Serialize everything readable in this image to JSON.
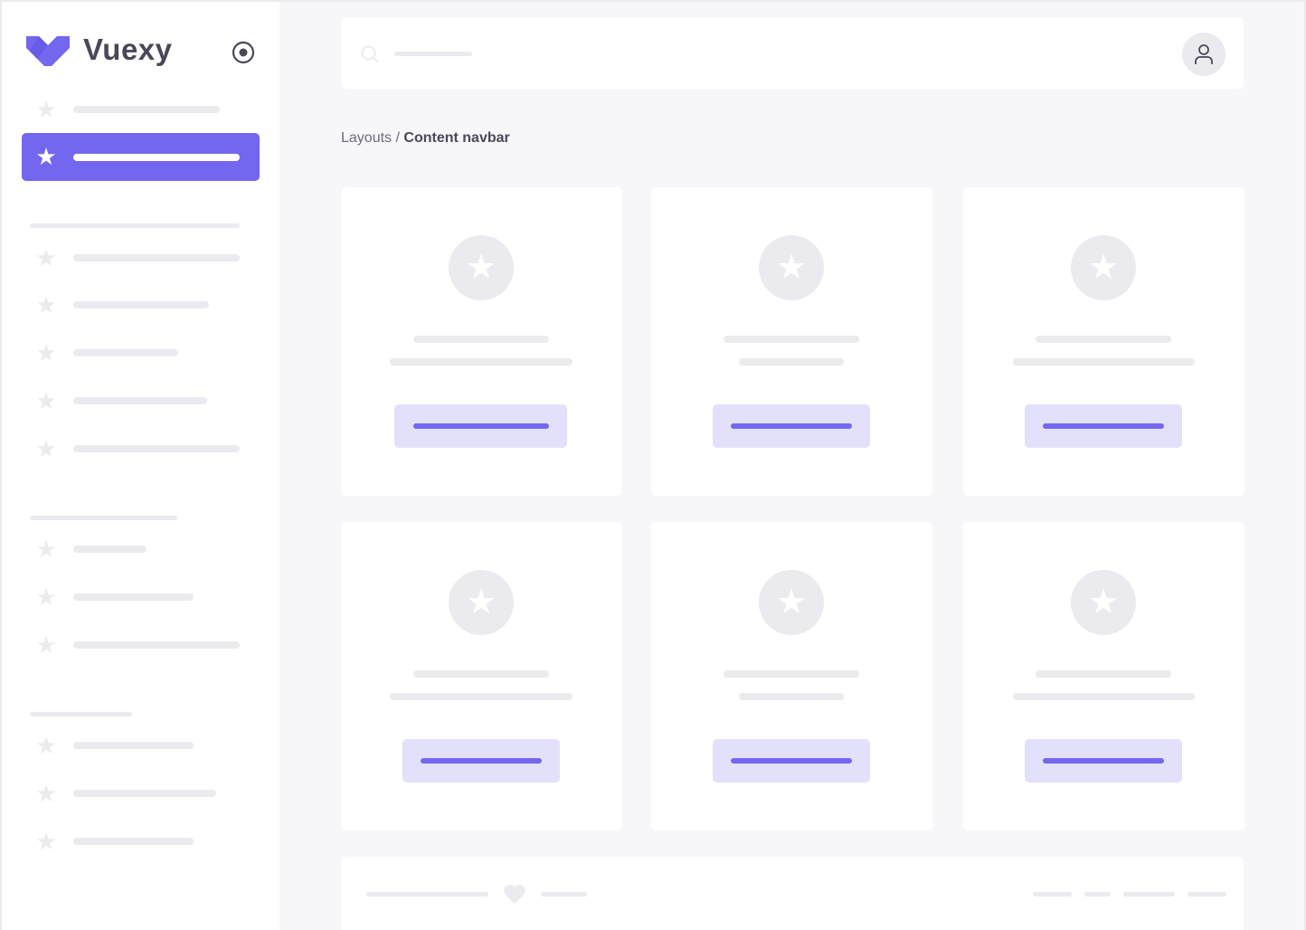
{
  "brand": {
    "name": "Vuexy",
    "logo_icon": "vuexy-logo",
    "toggle_icon": "radio-circle-icon"
  },
  "breadcrumb": {
    "parent": "Layouts",
    "separator": " / ",
    "current": "Content navbar"
  },
  "navbar": {
    "search_icon": "search-icon",
    "avatar_icon": "user-icon"
  },
  "colors": {
    "primary": "#7367f0",
    "primary_light": "#e3e0fc",
    "skeleton": "#ebebef",
    "background": "#f7f7f9",
    "text": "#4b4759"
  },
  "footer": {
    "heart_icon": "heart-icon"
  }
}
